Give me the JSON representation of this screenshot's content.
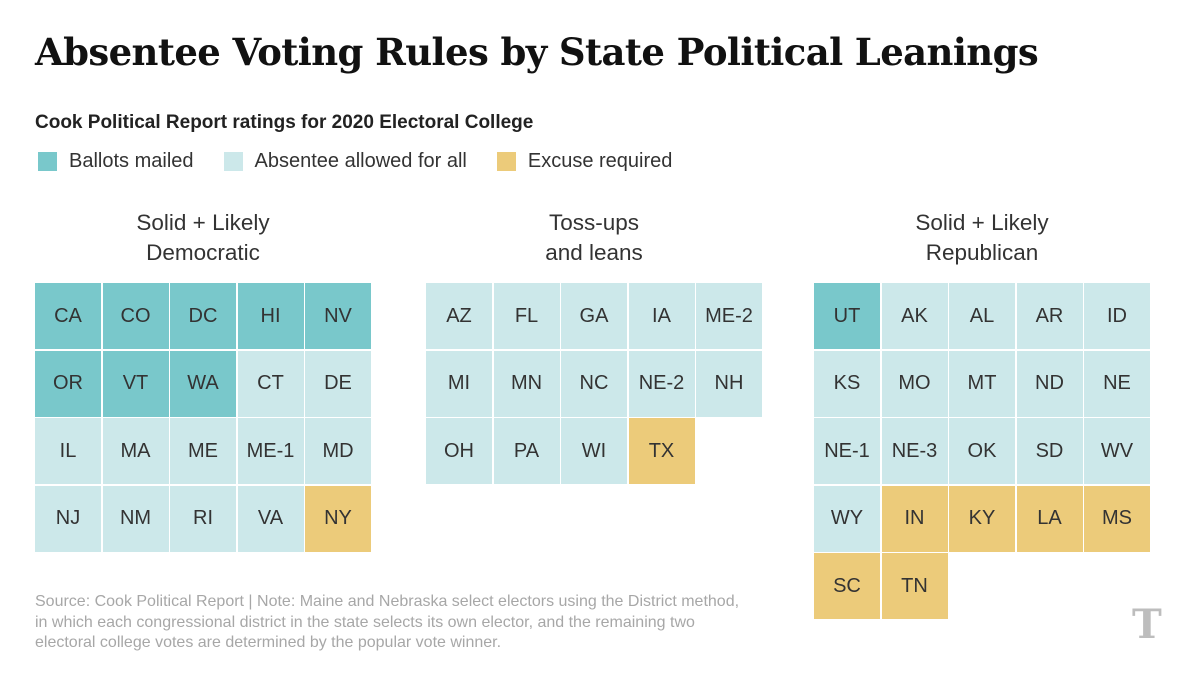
{
  "title": "Absentee Voting Rules by State Political Leanings",
  "chart_data": {
    "type": "table",
    "title": "Absentee Voting Rules by State Political Leanings",
    "subtitle": "Cook Political Report ratings for 2020 Electoral College",
    "legend": [
      {
        "key": "mailed",
        "label": "Ballots mailed",
        "color": "#79c8cb"
      },
      {
        "key": "absentee",
        "label": "Absentee allowed for all",
        "color": "#cce8ea"
      },
      {
        "key": "excuse",
        "label": "Excuse required",
        "color": "#eccb7a"
      }
    ],
    "groups": [
      {
        "title_lines": [
          "Solid + Likely",
          "Democratic"
        ],
        "states": [
          {
            "abbr": "CA",
            "rule": "mailed"
          },
          {
            "abbr": "CO",
            "rule": "mailed"
          },
          {
            "abbr": "DC",
            "rule": "mailed"
          },
          {
            "abbr": "HI",
            "rule": "mailed"
          },
          {
            "abbr": "NV",
            "rule": "mailed"
          },
          {
            "abbr": "OR",
            "rule": "mailed"
          },
          {
            "abbr": "VT",
            "rule": "mailed"
          },
          {
            "abbr": "WA",
            "rule": "mailed"
          },
          {
            "abbr": "CT",
            "rule": "absentee"
          },
          {
            "abbr": "DE",
            "rule": "absentee"
          },
          {
            "abbr": "IL",
            "rule": "absentee"
          },
          {
            "abbr": "MA",
            "rule": "absentee"
          },
          {
            "abbr": "ME",
            "rule": "absentee"
          },
          {
            "abbr": "ME-1",
            "rule": "absentee"
          },
          {
            "abbr": "MD",
            "rule": "absentee"
          },
          {
            "abbr": "NJ",
            "rule": "absentee"
          },
          {
            "abbr": "NM",
            "rule": "absentee"
          },
          {
            "abbr": "RI",
            "rule": "absentee"
          },
          {
            "abbr": "VA",
            "rule": "absentee"
          },
          {
            "abbr": "NY",
            "rule": "excuse"
          }
        ]
      },
      {
        "title_lines": [
          "Toss-ups",
          "and leans"
        ],
        "states": [
          {
            "abbr": "AZ",
            "rule": "absentee"
          },
          {
            "abbr": "FL",
            "rule": "absentee"
          },
          {
            "abbr": "GA",
            "rule": "absentee"
          },
          {
            "abbr": "IA",
            "rule": "absentee"
          },
          {
            "abbr": "ME-2",
            "rule": "absentee"
          },
          {
            "abbr": "MI",
            "rule": "absentee"
          },
          {
            "abbr": "MN",
            "rule": "absentee"
          },
          {
            "abbr": "NC",
            "rule": "absentee"
          },
          {
            "abbr": "NE-2",
            "rule": "absentee"
          },
          {
            "abbr": "NH",
            "rule": "absentee"
          },
          {
            "abbr": "OH",
            "rule": "absentee"
          },
          {
            "abbr": "PA",
            "rule": "absentee"
          },
          {
            "abbr": "WI",
            "rule": "absentee"
          },
          {
            "abbr": "TX",
            "rule": "excuse"
          }
        ]
      },
      {
        "title_lines": [
          "Solid + Likely",
          "Republican"
        ],
        "states": [
          {
            "abbr": "UT",
            "rule": "mailed"
          },
          {
            "abbr": "AK",
            "rule": "absentee"
          },
          {
            "abbr": "AL",
            "rule": "absentee"
          },
          {
            "abbr": "AR",
            "rule": "absentee"
          },
          {
            "abbr": "ID",
            "rule": "absentee"
          },
          {
            "abbr": "KS",
            "rule": "absentee"
          },
          {
            "abbr": "MO",
            "rule": "absentee"
          },
          {
            "abbr": "MT",
            "rule": "absentee"
          },
          {
            "abbr": "ND",
            "rule": "absentee"
          },
          {
            "abbr": "NE",
            "rule": "absentee"
          },
          {
            "abbr": "NE-1",
            "rule": "absentee"
          },
          {
            "abbr": "NE-3",
            "rule": "absentee"
          },
          {
            "abbr": "OK",
            "rule": "absentee"
          },
          {
            "abbr": "SD",
            "rule": "absentee"
          },
          {
            "abbr": "WV",
            "rule": "absentee"
          },
          {
            "abbr": "WY",
            "rule": "absentee"
          },
          {
            "abbr": "IN",
            "rule": "excuse"
          },
          {
            "abbr": "KY",
            "rule": "excuse"
          },
          {
            "abbr": "LA",
            "rule": "excuse"
          },
          {
            "abbr": "MS",
            "rule": "excuse"
          },
          {
            "abbr": "SC",
            "rule": "excuse"
          },
          {
            "abbr": "TN",
            "rule": "excuse"
          }
        ]
      }
    ]
  },
  "footnote_lines": [
    "Source: Cook Political Report | Note: Maine and Nebraska select electors using the District method,",
    "in which each congressional district in the state selects its own elector, and the remaining two",
    "electoral college votes are determined by the popular vote winner."
  ],
  "logo_text": "T"
}
